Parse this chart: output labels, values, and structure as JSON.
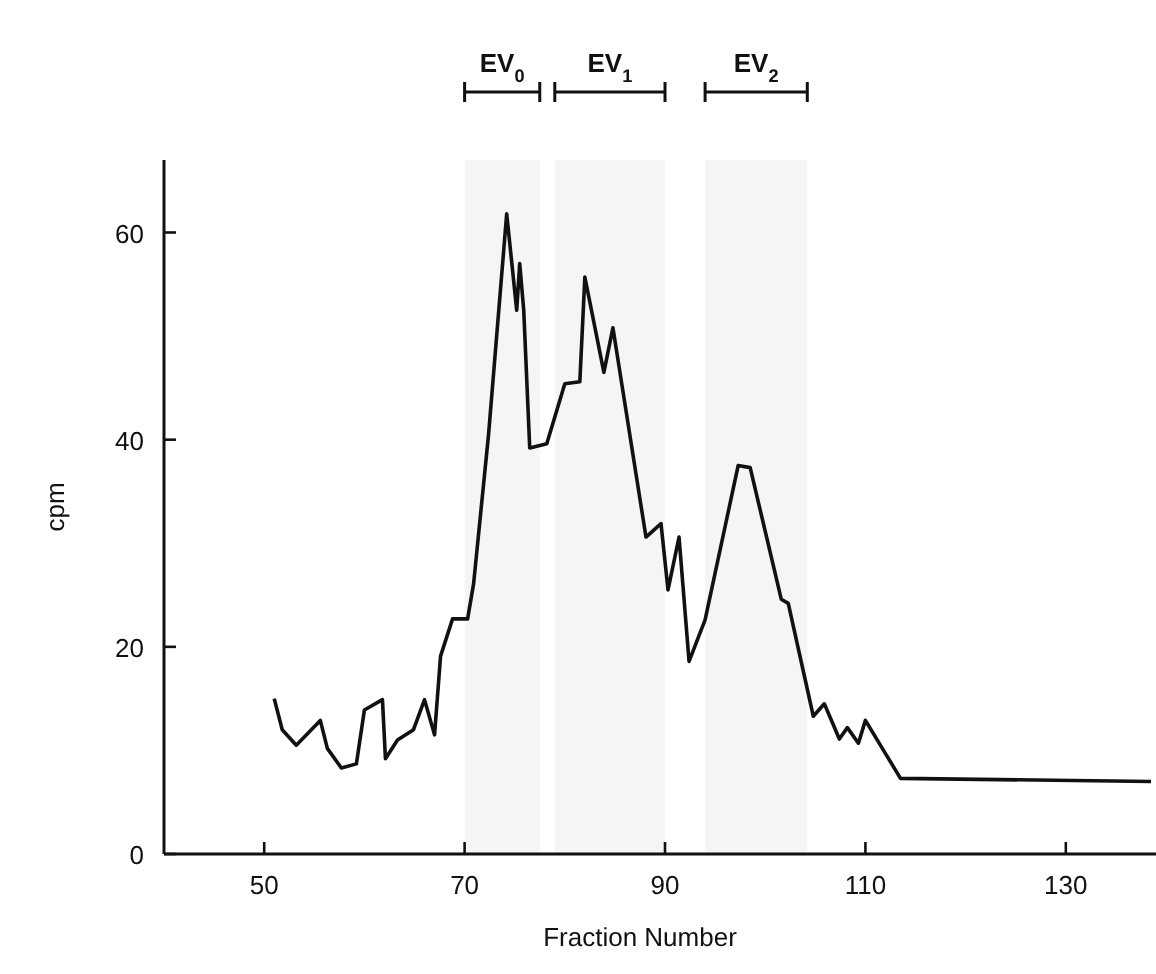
{
  "chart_data": {
    "type": "line",
    "xlabel": "Fraction Number",
    "ylabel": "cpm",
    "xlim": [
      40,
      139
    ],
    "ylim": [
      0,
      67
    ],
    "xticks": [
      50,
      70,
      90,
      110,
      130
    ],
    "yticks": [
      0,
      20,
      40,
      60
    ],
    "grid": false,
    "marker": "none",
    "line_style": "solid",
    "series": [
      {
        "color": "#111111",
        "x": [
          51,
          51.8,
          53.2,
          55.6,
          56.3,
          57.7,
          59.2,
          60,
          61.8,
          62.1,
          63.3,
          64.9,
          66,
          67,
          67.6,
          68.8,
          70.3,
          70.9,
          72.4,
          74.2,
          75.2,
          75.5,
          75.9,
          76.5,
          78.2,
          80,
          81.5,
          82,
          83.9,
          84.8,
          88.1,
          89.6,
          90.3,
          91.4,
          92.4,
          94,
          97.3,
          98.5,
          101.6,
          102.3,
          104.8,
          105.9,
          107.4,
          108.2,
          109.3,
          110,
          113.5,
          138.5
        ],
        "values": [
          15,
          12,
          10.5,
          12.9,
          10.2,
          8.3,
          8.7,
          13.9,
          14.9,
          9.2,
          11,
          12,
          14.9,
          11.5,
          19.1,
          22.7,
          22.7,
          26.1,
          40.6,
          61.8,
          52.5,
          57,
          52.5,
          39.2,
          39.6,
          45.4,
          45.6,
          55.7,
          46.5,
          50.8,
          30.6,
          31.9,
          25.5,
          30.6,
          18.6,
          22.6,
          37.5,
          37.3,
          24.6,
          24.2,
          13.3,
          14.5,
          11.1,
          12.2,
          10.7,
          12.9,
          7.3,
          7
        ]
      }
    ],
    "bands": [
      {
        "axis": "x",
        "from": 70,
        "to": 77.5,
        "label": "EV$_{0}$"
      },
      {
        "axis": "x",
        "from": 79,
        "to": 90,
        "label": "EV$_{1}$"
      },
      {
        "axis": "x",
        "from": 94,
        "to": 104.2,
        "label": "EV$_{2}$"
      }
    ]
  }
}
